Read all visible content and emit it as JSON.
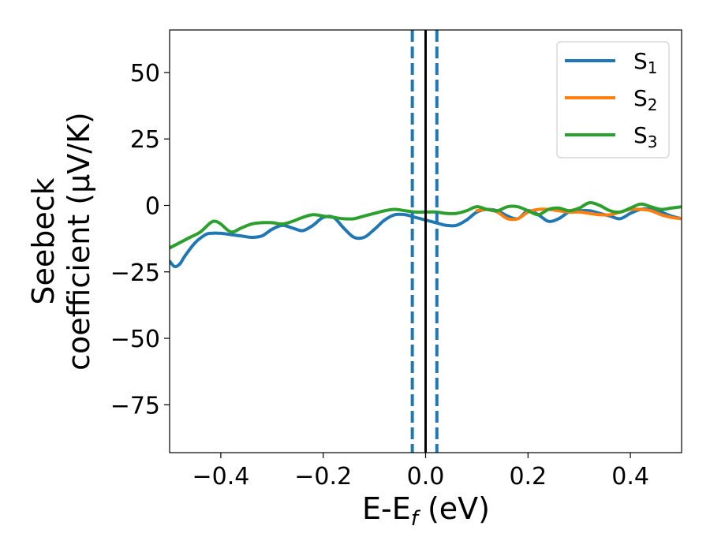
{
  "chart_data": {
    "type": "line",
    "xlabel": "E-E",
    "xlabel_sub": "f",
    "xlabel_unit": " (eV)",
    "ylabel_line1": "Seebeck",
    "ylabel_line2": "coefficient  (μV/K)",
    "xlim": [
      -0.5,
      0.5
    ],
    "ylim": [
      -93,
      66
    ],
    "x_ticks": [
      -0.4,
      -0.2,
      0.0,
      0.2,
      0.4
    ],
    "x_tick_labels": [
      "−0.4",
      "−0.2",
      "0.0",
      "0.2",
      "0.4"
    ],
    "y_ticks": [
      50,
      25,
      0,
      -25,
      -50,
      -75
    ],
    "y_tick_labels": [
      "50",
      "25",
      "0",
      "−25",
      "−50",
      "−75"
    ],
    "grid": false,
    "legend_position": "top-right",
    "vertical_lines": [
      {
        "x": -0.026,
        "style": "dashed",
        "color": "#1f77b4"
      },
      {
        "x": 0.0,
        "style": "solid",
        "color": "#000000"
      },
      {
        "x": 0.022,
        "style": "dashed",
        "color": "#1f77b4"
      }
    ],
    "series": [
      {
        "name": "S",
        "name_sub": "1",
        "color": "#1f77b4",
        "x": [
          -0.5,
          -0.49,
          -0.48,
          -0.47,
          -0.45,
          -0.43,
          -0.42,
          -0.4,
          -0.38,
          -0.36,
          -0.34,
          -0.32,
          -0.3,
          -0.28,
          -0.26,
          -0.24,
          -0.22,
          -0.2,
          -0.18,
          -0.16,
          -0.14,
          -0.12,
          -0.1,
          -0.08,
          -0.06,
          -0.04,
          -0.02,
          0.0,
          0.02,
          0.04,
          0.06,
          0.08,
          0.1,
          0.12,
          0.14,
          0.16,
          0.18,
          0.2,
          0.22,
          0.24,
          0.26,
          0.28,
          0.3,
          0.32,
          0.34,
          0.36,
          0.38,
          0.4,
          0.42,
          0.44,
          0.46,
          0.48,
          0.5
        ],
        "values": [
          -21,
          -23,
          -22,
          -19,
          -14,
          -11,
          -10.5,
          -10.5,
          -11,
          -11.5,
          -12,
          -11.5,
          -9,
          -7.5,
          -8.5,
          -9.5,
          -7.5,
          -4.5,
          -4.5,
          -8.5,
          -12,
          -12,
          -9,
          -5.5,
          -3.5,
          -3.5,
          -4.5,
          -5.5,
          -6.5,
          -7.5,
          -7.5,
          -5.5,
          -2.5,
          -1.5,
          -2,
          -4,
          -5,
          -2,
          -3.5,
          -6,
          -5,
          -2.5,
          -2,
          -2,
          -3,
          -4,
          -5,
          -3,
          -1.5,
          -1.5,
          -2.5,
          -4,
          -5
        ]
      },
      {
        "name": "S",
        "name_sub": "2",
        "color": "#ff7f0e",
        "x": [
          0.1,
          0.12,
          0.14,
          0.16,
          0.18,
          0.2,
          0.22,
          0.24,
          0.26,
          0.28,
          0.3,
          0.32,
          0.34,
          0.36,
          0.38,
          0.4,
          0.42,
          0.44,
          0.46,
          0.48,
          0.5
        ],
        "values": [
          -2,
          -1.5,
          -2.5,
          -5,
          -5,
          -2.5,
          -1.5,
          -1.5,
          -2,
          -2.5,
          -2.5,
          -3,
          -3.5,
          -3.5,
          -2.5,
          -1.5,
          -1.5,
          -2,
          -3.5,
          -4.5,
          -5
        ]
      },
      {
        "name": "S",
        "name_sub": "3",
        "color": "#2ca02c",
        "x": [
          -0.5,
          -0.48,
          -0.46,
          -0.44,
          -0.42,
          -0.41,
          -0.4,
          -0.38,
          -0.36,
          -0.34,
          -0.32,
          -0.3,
          -0.28,
          -0.26,
          -0.24,
          -0.22,
          -0.2,
          -0.18,
          -0.16,
          -0.14,
          -0.12,
          -0.1,
          -0.08,
          -0.06,
          -0.04,
          -0.02,
          0.0,
          0.02,
          0.04,
          0.06,
          0.08,
          0.1,
          0.12,
          0.14,
          0.16,
          0.18,
          0.2,
          0.22,
          0.24,
          0.26,
          0.28,
          0.3,
          0.32,
          0.34,
          0.36,
          0.38,
          0.4,
          0.42,
          0.44,
          0.46,
          0.48,
          0.5
        ],
        "values": [
          -16,
          -14,
          -12,
          -10,
          -6.5,
          -6,
          -7,
          -10,
          -8.5,
          -7,
          -6.5,
          -6.5,
          -7,
          -6,
          -4.5,
          -3.5,
          -4,
          -4.5,
          -5,
          -5,
          -4,
          -3,
          -2,
          -1.5,
          -2,
          -2.5,
          -2.5,
          -2.5,
          -3,
          -3,
          -2,
          -0.5,
          -1.5,
          -2,
          -0.5,
          -0.5,
          -2,
          -3.5,
          -1.5,
          -1,
          -2,
          -1,
          1,
          0,
          -2,
          -2.5,
          -1,
          0.5,
          -0.5,
          -1.5,
          -1,
          -0.5
        ]
      }
    ]
  }
}
